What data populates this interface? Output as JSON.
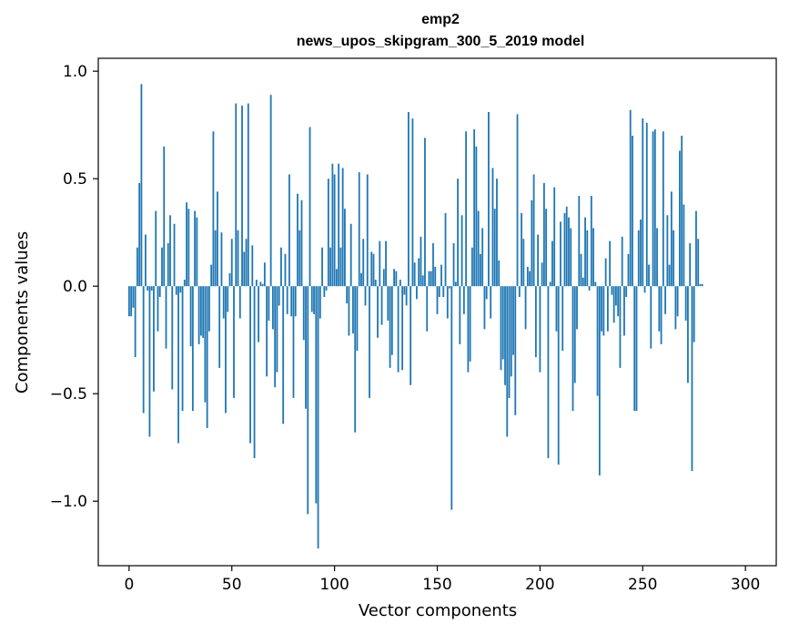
{
  "chart_data": {
    "type": "bar",
    "title": "emp2",
    "subtitle": "news_upos_skipgram_300_5_2019 model",
    "xlabel": "Vector components",
    "ylabel": "Components values",
    "xlim": [
      -15,
      315
    ],
    "ylim": [
      -1.3,
      1.06
    ],
    "xticks": [
      0,
      50,
      100,
      150,
      200,
      250,
      300
    ],
    "xtick_labels": [
      "0",
      "50",
      "100",
      "150",
      "200",
      "250",
      "300"
    ],
    "yticks": [
      1.0,
      0.5,
      0.0,
      -0.5,
      -1.0
    ],
    "ytick_labels": [
      "1.0",
      "0.5",
      "0.0",
      "−0.5",
      "−1.0"
    ],
    "color": "#1f77b4",
    "values": [
      -0.14,
      -0.14,
      -0.1,
      -0.33,
      0.18,
      0.48,
      0.94,
      -0.59,
      0.24,
      -0.02,
      -0.7,
      -0.02,
      -0.49,
      0.35,
      -0.21,
      -0.05,
      0.18,
      0.65,
      -0.29,
      0.2,
      0.33,
      -0.48,
      0.29,
      -0.04,
      -0.73,
      -0.03,
      -0.58,
      0.03,
      0.39,
      0.36,
      -0.28,
      -0.58,
      0.35,
      0.32,
      -0.27,
      -0.23,
      -0.24,
      -0.54,
      -0.66,
      -0.21,
      0.1,
      0.72,
      0.26,
      0.44,
      -0.38,
      0.25,
      -0.15,
      -0.59,
      -0.12,
      0.06,
      0.22,
      -0.52,
      0.85,
      0.26,
      -0.15,
      0.84,
      0.16,
      0.22,
      0.85,
      -0.73,
      0.19,
      -0.8,
      0.03,
      -0.26,
      0.02,
      0.01,
      0.11,
      -0.42,
      -0.16,
      0.89,
      -0.2,
      -0.47,
      -0.4,
      -0.09,
      0.18,
      -0.64,
      0.15,
      -0.13,
      0.52,
      -0.14,
      -0.52,
      -0.14,
      0.43,
      0.26,
      0.4,
      -0.25,
      -0.57,
      -1.06,
      0.74,
      -0.12,
      -0.13,
      -1.01,
      -1.22,
      -0.15,
      0.18,
      -0.05,
      -0.02,
      0.5,
      0.18,
      0.57,
      0.52,
      0.08,
      0.57,
      0.18,
      0.55,
      0.36,
      -0.08,
      -0.23,
      0.29,
      -0.22,
      -0.68,
      -0.3,
      0.53,
      0.06,
      0.22,
      -0.09,
      0.52,
      -0.52,
      0.16,
      0.15,
      0.03,
      -0.24,
      0.21,
      -0.18,
      0.08,
      0.21,
      -0.16,
      -0.38,
      -0.32,
      0.08,
      0.07,
      -0.4,
      0.03,
      -0.39,
      -0.04,
      -0.09,
      0.81,
      -0.46,
      0.78,
      0.11,
      -0.06,
      0.13,
      0.23,
      0.05,
      0.69,
      -0.21,
      0.07,
      0.07,
      0.2,
      0.09,
      -0.13,
      -0.05,
      0.1,
      -0.05,
      0.34,
      -0.15,
      -0.01,
      -1.04,
      0.2,
      0.02,
      0.5,
      -0.27,
      0.33,
      -0.13,
      0.72,
      -0.4,
      -0.35,
      0.18,
      0.73,
      0.65,
      0.35,
      0.15,
      0.27,
      -0.2,
      -0.06,
      0.81,
      -0.15,
      0.55,
      0.36,
      0.5,
      0.12,
      -0.39,
      -0.34,
      -0.46,
      -0.7,
      -0.52,
      -0.42,
      -0.32,
      -0.6,
      0.8,
      -0.05,
      0.34,
      0.22,
      -0.2,
      0.09,
      0.07,
      0.4,
      0.52,
      -0.33,
      0.24,
      -0.4,
      0.11,
      0.48,
      0.36,
      -0.8,
      0.02,
      0.21,
      0.46,
      -0.21,
      -0.83,
      0.3,
      -0.3,
      0.34,
      0.37,
      0.32,
      0.27,
      -0.58,
      -0.45,
      -0.2,
      0.42,
      0.15,
      0.04,
      0.32,
      0.26,
      -0.02,
      0.42,
      0.27,
      0.02,
      -0.51,
      -0.88,
      -0.21,
      -0.23,
      0.13,
      -0.21,
      0.21,
      -0.04,
      -0.17,
      -0.09,
      -0.14,
      -0.38,
      0.23,
      -0.23,
      -0.05,
      0.15,
      0.82,
      0.7,
      -0.58,
      -0.58,
      0.26,
      0.31,
      0.78,
      -0.03,
      0.76,
      0.1,
      -0.29,
      0.72,
      0.73,
      0.27,
      -0.21,
      -0.27,
      0.72,
      -0.13,
      0.33,
      0.1,
      0.44,
      0.26,
      -0.2,
      -0.14,
      0.63,
      0.7,
      0.38,
      -0.16,
      -0.45,
      0.2,
      -0.86,
      -0.26,
      0.35,
      0.22,
      0.01,
      0.01
    ]
  }
}
